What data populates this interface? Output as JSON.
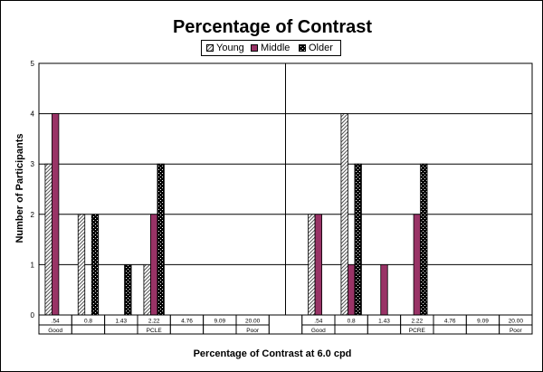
{
  "colors": {
    "young": "#ffffff",
    "middle": "#993366",
    "older": "#000000",
    "grid": "#000000"
  },
  "chart_data": {
    "type": "bar",
    "title": "Percentage of Contrast",
    "xlabel": "Percentage of Contrast at 6.0 cpd",
    "ylabel": "Number of Participants",
    "ylim": [
      0,
      5
    ],
    "yticks": [
      0,
      1,
      2,
      3,
      4,
      5
    ],
    "grid": true,
    "legend_position": "top-center",
    "legend": [
      "Young",
      "Middle",
      "Older"
    ],
    "groups": [
      {
        "name": "PCLE",
        "categories": [
          ".54",
          "0.8",
          "1.43",
          "2.22",
          "4.76",
          "9.09",
          "20.00"
        ],
        "sublabels": [
          "Good",
          "",
          "",
          "PCLE",
          "",
          "",
          "Poor"
        ],
        "series": [
          {
            "name": "Young",
            "values": [
              3,
              2,
              0,
              1,
              0,
              0,
              0
            ]
          },
          {
            "name": "Middle",
            "values": [
              4,
              0,
              0,
              2,
              0,
              0,
              0
            ]
          },
          {
            "name": "Older",
            "values": [
              0,
              2,
              1,
              3,
              0,
              0,
              0
            ]
          }
        ]
      },
      {
        "name": "PCRE",
        "categories": [
          ".54",
          "0.8",
          "1.43",
          "2.22",
          "4.76",
          "9.09",
          "20.00"
        ],
        "sublabels": [
          "Good",
          "",
          "",
          "PCRE",
          "",
          "",
          "Poor"
        ],
        "series": [
          {
            "name": "Young",
            "values": [
              2,
              4,
              0,
              0,
              0,
              0,
              0
            ]
          },
          {
            "name": "Middle",
            "values": [
              2,
              1,
              1,
              2,
              0,
              0,
              0
            ]
          },
          {
            "name": "Older",
            "values": [
              0,
              3,
              0,
              3,
              0,
              0,
              0
            ]
          }
        ]
      }
    ]
  }
}
